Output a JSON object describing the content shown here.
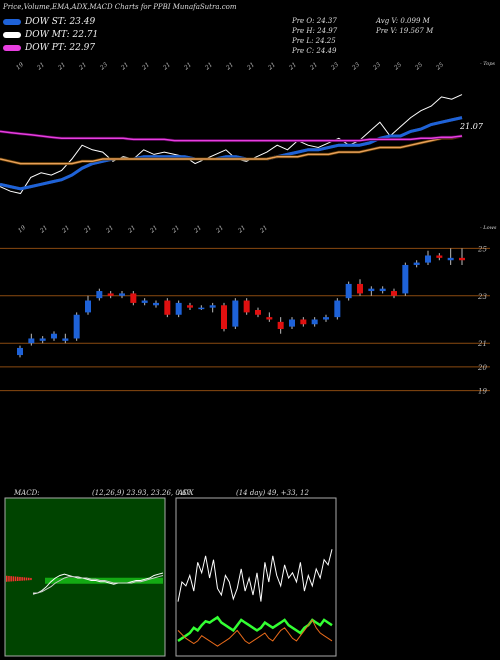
{
  "header": {
    "title": "Price,Volume,EMA,ADX,MACD Charts for PPBI MunafaSutra.com"
  },
  "legend": [
    {
      "label": "DOW ST: 23.49",
      "color": "#1e62d8"
    },
    {
      "label": "DOW MT: 22.71",
      "color": "#ffffff"
    },
    {
      "label": "DOW PT: 22.97",
      "color": "#e83fe0"
    }
  ],
  "price_info": {
    "open": "Pre   O: 24.37",
    "high": "Pre   H: 24.97",
    "low": "Pre   L: 24.25",
    "close": "Pre   C: 24.49",
    "avg_volume": "Avg V: 0.099 M",
    "prev_volume": "Pre   V: 19.567 M"
  },
  "panels": {
    "upper_top_axis_label": "- Tops",
    "upper_value_label": "21.07",
    "lower_top_axis_label": "- Lows",
    "macd_label": "MACD:",
    "macd_values": "(12,26,9) 23.93,  23.26,  0.67",
    "adx_label": "ADX",
    "adx_values": "(14  day) 49,  +33,  12"
  },
  "chart_data": [
    {
      "type": "line",
      "name": "EMA overview",
      "top_tick_labels": [
        "19",
        "21",
        "21",
        "21",
        "23",
        "21",
        "21",
        "21",
        "21",
        "21",
        "21",
        "21",
        "21",
        "21",
        "21",
        "23",
        "23",
        "23",
        "25",
        "25",
        "25"
      ],
      "series": [
        {
          "name": "price",
          "color": "#ffffff",
          "values": [
            20.8,
            20.6,
            20.5,
            21.2,
            21.4,
            21.3,
            21.5,
            22.0,
            22.6,
            22.4,
            22.3,
            21.9,
            22.1,
            22.0,
            22.4,
            22.2,
            22.3,
            22.2,
            22.1,
            21.8,
            22.0,
            22.2,
            22.4,
            22.0,
            21.9,
            22.1,
            22.3,
            22.6,
            22.4,
            22.8,
            22.6,
            22.5,
            22.7,
            22.9,
            22.6,
            22.8,
            23.2,
            23.6,
            23.0,
            23.4,
            23.8,
            24.1,
            24.3,
            24.7,
            24.6,
            24.8
          ]
        },
        {
          "name": "EMA short",
          "color": "#1e62d8",
          "values": [
            20.9,
            20.8,
            20.7,
            20.8,
            20.9,
            21.0,
            21.1,
            21.3,
            21.6,
            21.8,
            21.9,
            22.0,
            22.0,
            22.0,
            22.1,
            22.1,
            22.1,
            22.1,
            22.1,
            22.0,
            22.0,
            22.0,
            22.1,
            22.1,
            22.0,
            22.0,
            22.0,
            22.1,
            22.2,
            22.3,
            22.4,
            22.4,
            22.5,
            22.6,
            22.6,
            22.6,
            22.7,
            22.9,
            23.0,
            23.0,
            23.2,
            23.3,
            23.5,
            23.6,
            23.7,
            23.8
          ]
        },
        {
          "name": "EMA mid",
          "color": "#e8a05a",
          "values": [
            22.0,
            21.9,
            21.8,
            21.8,
            21.8,
            21.8,
            21.8,
            21.8,
            21.9,
            21.9,
            22.0,
            22.0,
            22.0,
            22.0,
            22.0,
            22.0,
            22.0,
            22.0,
            22.0,
            22.0,
            22.0,
            22.0,
            22.0,
            22.0,
            22.0,
            22.0,
            22.0,
            22.1,
            22.1,
            22.1,
            22.2,
            22.2,
            22.2,
            22.3,
            22.3,
            22.3,
            22.4,
            22.5,
            22.5,
            22.5,
            22.6,
            22.7,
            22.8,
            22.9,
            22.9,
            23.0
          ]
        },
        {
          "name": "EMA long",
          "color": "#e83fe0",
          "values": [
            23.2,
            23.15,
            23.1,
            23.05,
            23.0,
            22.95,
            22.9,
            22.9,
            22.9,
            22.9,
            22.9,
            22.9,
            22.9,
            22.85,
            22.85,
            22.85,
            22.85,
            22.8,
            22.8,
            22.8,
            22.8,
            22.8,
            22.8,
            22.8,
            22.8,
            22.8,
            22.8,
            22.8,
            22.8,
            22.8,
            22.8,
            22.8,
            22.8,
            22.8,
            22.8,
            22.8,
            22.85,
            22.85,
            22.85,
            22.85,
            22.85,
            22.9,
            22.9,
            22.95,
            22.95,
            23.0
          ]
        }
      ]
    },
    {
      "type": "bar",
      "name": "candles",
      "top_tick_labels": [
        "19",
        "21",
        "21",
        "21",
        "21",
        "21",
        "21",
        "21",
        "21",
        "21",
        "21",
        "21"
      ],
      "y_axis_ticks": [
        "25",
        "23",
        "21",
        "20",
        "19"
      ],
      "candles": [
        {
          "o": 20.5,
          "h": 20.9,
          "l": 20.4,
          "c": 20.8
        },
        {
          "o": 21.0,
          "h": 21.4,
          "l": 20.9,
          "c": 21.2
        },
        {
          "o": 21.1,
          "h": 21.3,
          "l": 21.0,
          "c": 21.2
        },
        {
          "o": 21.2,
          "h": 21.5,
          "l": 21.1,
          "c": 21.4
        },
        {
          "o": 21.1,
          "h": 21.4,
          "l": 21.0,
          "c": 21.2
        },
        {
          "o": 21.2,
          "h": 22.3,
          "l": 21.1,
          "c": 22.2
        },
        {
          "o": 22.3,
          "h": 23.0,
          "l": 22.2,
          "c": 22.8
        },
        {
          "o": 22.9,
          "h": 23.3,
          "l": 22.8,
          "c": 23.2
        },
        {
          "o": 23.1,
          "h": 23.2,
          "l": 22.9,
          "c": 23.0
        },
        {
          "o": 23.0,
          "h": 23.2,
          "l": 22.9,
          "c": 23.1
        },
        {
          "o": 23.1,
          "h": 23.2,
          "l": 22.6,
          "c": 22.7
        },
        {
          "o": 22.7,
          "h": 22.9,
          "l": 22.6,
          "c": 22.8
        },
        {
          "o": 22.6,
          "h": 22.8,
          "l": 22.5,
          "c": 22.7
        },
        {
          "o": 22.8,
          "h": 22.9,
          "l": 22.1,
          "c": 22.2
        },
        {
          "o": 22.2,
          "h": 22.8,
          "l": 22.1,
          "c": 22.7
        },
        {
          "o": 22.6,
          "h": 22.7,
          "l": 22.4,
          "c": 22.5
        },
        {
          "o": 22.5,
          "h": 22.6,
          "l": 22.4,
          "c": 22.5
        },
        {
          "o": 22.5,
          "h": 22.7,
          "l": 22.3,
          "c": 22.6
        },
        {
          "o": 22.6,
          "h": 22.7,
          "l": 21.5,
          "c": 21.6
        },
        {
          "o": 21.7,
          "h": 22.9,
          "l": 21.6,
          "c": 22.8
        },
        {
          "o": 22.8,
          "h": 22.9,
          "l": 22.2,
          "c": 22.3
        },
        {
          "o": 22.4,
          "h": 22.5,
          "l": 22.1,
          "c": 22.2
        },
        {
          "o": 22.1,
          "h": 22.3,
          "l": 21.9,
          "c": 22.0
        },
        {
          "o": 21.9,
          "h": 22.1,
          "l": 21.4,
          "c": 21.6
        },
        {
          "o": 21.7,
          "h": 22.1,
          "l": 21.6,
          "c": 22.0
        },
        {
          "o": 22.0,
          "h": 22.1,
          "l": 21.7,
          "c": 21.8
        },
        {
          "o": 21.8,
          "h": 22.1,
          "l": 21.7,
          "c": 22.0
        },
        {
          "o": 22.0,
          "h": 22.2,
          "l": 21.9,
          "c": 22.1
        },
        {
          "o": 22.1,
          "h": 22.9,
          "l": 22.0,
          "c": 22.8
        },
        {
          "o": 22.9,
          "h": 23.6,
          "l": 22.8,
          "c": 23.5
        },
        {
          "o": 23.5,
          "h": 23.7,
          "l": 23.0,
          "c": 23.1
        },
        {
          "o": 23.2,
          "h": 23.4,
          "l": 23.0,
          "c": 23.3
        },
        {
          "o": 23.2,
          "h": 23.4,
          "l": 23.1,
          "c": 23.3
        },
        {
          "o": 23.2,
          "h": 23.3,
          "l": 22.9,
          "c": 23.0
        },
        {
          "o": 23.1,
          "h": 24.4,
          "l": 23.0,
          "c": 24.3
        },
        {
          "o": 24.3,
          "h": 24.5,
          "l": 24.2,
          "c": 24.4
        },
        {
          "o": 24.4,
          "h": 24.9,
          "l": 24.3,
          "c": 24.7
        },
        {
          "o": 24.7,
          "h": 24.8,
          "l": 24.5,
          "c": 24.6
        },
        {
          "o": 24.5,
          "h": 25.0,
          "l": 24.3,
          "c": 24.6
        },
        {
          "o": 24.6,
          "h": 25.0,
          "l": 24.3,
          "c": 24.5
        }
      ]
    },
    {
      "type": "line",
      "name": "MACD",
      "series": [
        {
          "name": "macd",
          "color": "#ffffff",
          "values": [
            -1.0,
            -0.9,
            -0.7,
            -0.4,
            0.0,
            0.3,
            0.5,
            0.6,
            0.5,
            0.4,
            0.3,
            0.3,
            0.2,
            0.1,
            0.1,
            0.0,
            0.0,
            -0.1,
            -0.2,
            -0.1,
            -0.1,
            -0.1,
            0.0,
            0.1,
            0.1,
            0.2,
            0.3,
            0.5,
            0.6,
            0.7
          ]
        },
        {
          "name": "signal",
          "color": "#cccccc",
          "values": [
            -0.9,
            -0.9,
            -0.8,
            -0.6,
            -0.4,
            -0.1,
            0.1,
            0.3,
            0.4,
            0.4,
            0.4,
            0.3,
            0.3,
            0.2,
            0.2,
            0.1,
            0.1,
            0.0,
            -0.1,
            -0.1,
            -0.1,
            -0.1,
            -0.1,
            0.0,
            0.0,
            0.1,
            0.2,
            0.3,
            0.4,
            0.5
          ]
        }
      ]
    },
    {
      "type": "line",
      "name": "ADX",
      "series": [
        {
          "name": "+DI",
          "color": "#ffffff",
          "values": [
            40,
            55,
            52,
            60,
            48,
            70,
            62,
            75,
            58,
            72,
            50,
            45,
            60,
            55,
            42,
            50,
            65,
            48,
            58,
            45,
            62,
            40,
            70,
            55,
            75,
            60,
            52,
            68,
            58,
            62,
            55,
            70,
            48,
            60,
            52,
            65,
            58,
            72,
            68,
            80
          ]
        },
        {
          "name": "ADX",
          "color": "#33ff33",
          "values": [
            10,
            12,
            14,
            16,
            20,
            18,
            22,
            25,
            24,
            26,
            28,
            24,
            22,
            20,
            18,
            22,
            26,
            24,
            22,
            20,
            18,
            20,
            24,
            22,
            20,
            22,
            24,
            26,
            22,
            20,
            18,
            16,
            20,
            22,
            26,
            24,
            22,
            26,
            24,
            22
          ]
        },
        {
          "name": "-DI",
          "color": "#e86a1a",
          "values": [
            18,
            15,
            12,
            10,
            8,
            10,
            14,
            12,
            10,
            8,
            6,
            8,
            10,
            12,
            15,
            18,
            14,
            10,
            8,
            10,
            12,
            14,
            16,
            12,
            10,
            14,
            18,
            20,
            16,
            12,
            10,
            14,
            18,
            22,
            26,
            20,
            16,
            14,
            12,
            10
          ]
        }
      ]
    }
  ]
}
